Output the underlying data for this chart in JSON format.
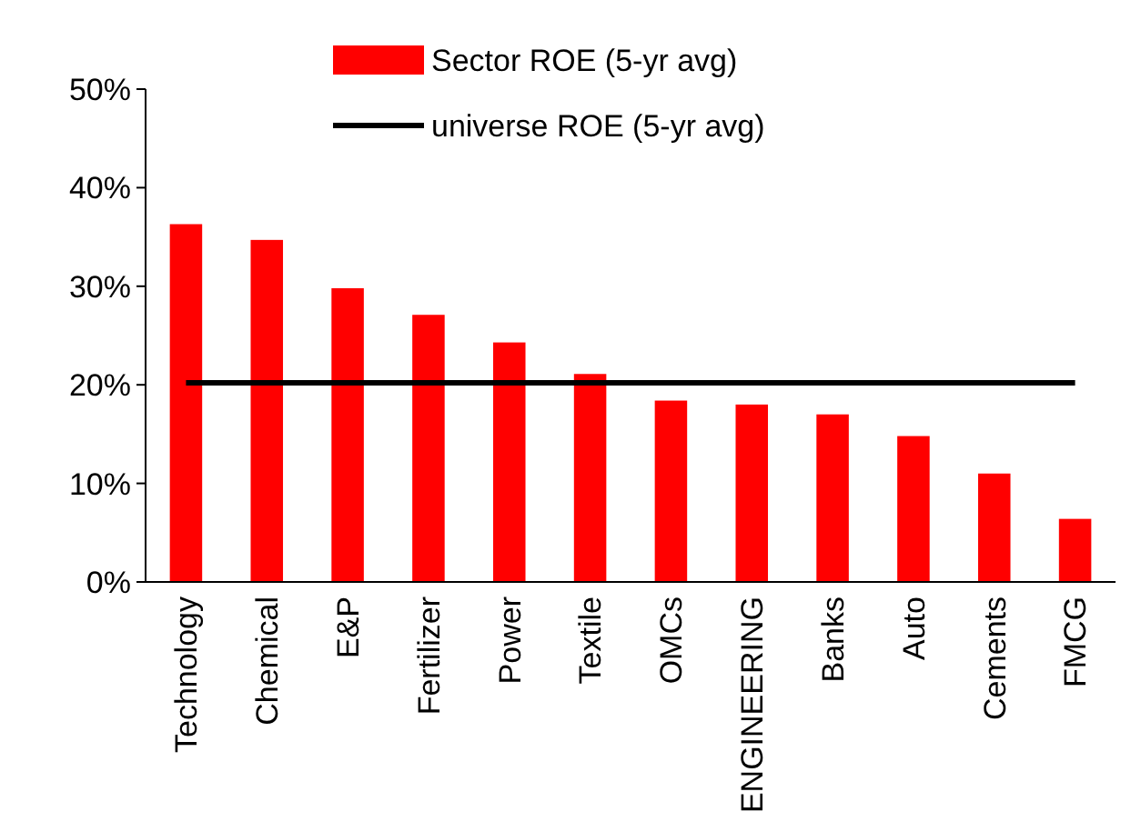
{
  "chart_data": {
    "type": "bar",
    "categories": [
      "Technology",
      "Chemical",
      "E&P",
      "Fertilizer",
      "Power",
      "Textile",
      "OMCs",
      "ENGINEERING",
      "Banks",
      "Auto",
      "Cements",
      "FMCG"
    ],
    "series": [
      {
        "name": "Sector ROE (5-yr avg)",
        "color": "#ff0000",
        "values": [
          36.3,
          34.7,
          29.8,
          27.1,
          24.3,
          21.1,
          18.4,
          18,
          17,
          14.8,
          11,
          6.4
        ]
      },
      {
        "name": "universe ROE (5-yr avg)",
        "type": "line",
        "color": "#000000",
        "values": [
          20.2,
          20.2,
          20.2,
          20.2,
          20.2,
          20.2,
          20.2,
          20.2,
          20.2,
          20.2,
          20.2,
          20.2
        ]
      }
    ],
    "ylim": [
      0,
      50
    ],
    "yticks": [
      {
        "value": 0,
        "label": "0%"
      },
      {
        "value": 10,
        "label": "10%"
      },
      {
        "value": 20,
        "label": "20%"
      },
      {
        "value": 30,
        "label": "30%"
      },
      {
        "value": 40,
        "label": "40%"
      },
      {
        "value": 50,
        "label": "50%"
      }
    ],
    "grid": false,
    "legend": "top"
  }
}
